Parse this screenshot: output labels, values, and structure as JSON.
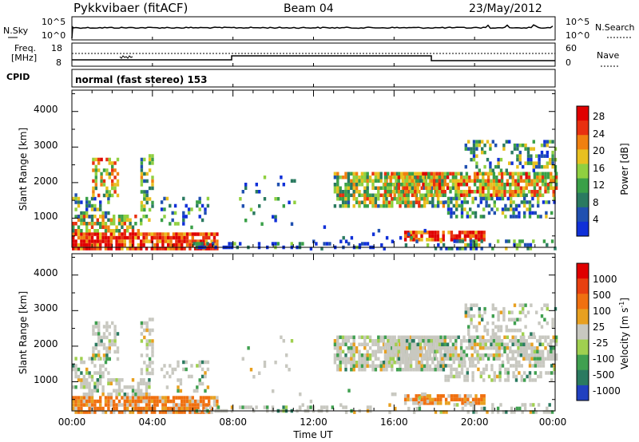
{
  "header": {
    "title": "Pykkvibaer (fitACF)",
    "beam": "Beam 04",
    "date": "23/May/2012"
  },
  "noise_panel": {
    "left_label": "N.Sky",
    "right_label": "N.Search",
    "left_ticks": [
      "10^5",
      "10^0"
    ],
    "right_ticks": [
      "10^5",
      "10^0"
    ]
  },
  "freq_panel": {
    "left_label_line1": "Freq.",
    "left_label_line2": "[MHz]",
    "right_label": "Nave",
    "left_ticks": [
      "18",
      "8"
    ],
    "right_ticks": [
      "60",
      "0"
    ]
  },
  "cpid": {
    "label": "CPID",
    "value": "normal (fast stereo) 153"
  },
  "x_axis": {
    "label": "Time UT",
    "ticks": [
      "00:00",
      "04:00",
      "08:00",
      "12:00",
      "16:00",
      "20:00",
      "00:00"
    ]
  },
  "colors": {
    "power_scale": [
      "#1030d8",
      "#2050b0",
      "#2a7a60",
      "#3aa048",
      "#90d040",
      "#e8c020",
      "#f08010",
      "#e83010",
      "#e00000"
    ],
    "velocity_scale": [
      "#2040c0",
      "#2a7a60",
      "#40a050",
      "#a0d050",
      "#c8c8c0",
      "#e8a020",
      "#f07010",
      "#e84010",
      "#e00000"
    ]
  },
  "chart_data": [
    {
      "type": "heatmap",
      "panel": "power",
      "ylabel": "Slant Range [km]",
      "xlabel": "",
      "y_ticks": [
        "1000",
        "2000",
        "3000",
        "4000"
      ],
      "x_range_hours": [
        0,
        24
      ],
      "y_range_km": [
        180,
        4600
      ],
      "colorbar": {
        "label": "Power [dB]",
        "ticks": [
          "4",
          "8",
          "12",
          "16",
          "20",
          "24",
          "28"
        ]
      }
    },
    {
      "type": "heatmap",
      "panel": "velocity",
      "ylabel": "Slant Range [km]",
      "xlabel": "Time UT",
      "y_ticks": [
        "1000",
        "2000",
        "3000",
        "4000"
      ],
      "x_range_hours": [
        0,
        24
      ],
      "y_range_km": [
        180,
        4600
      ],
      "colorbar": {
        "label": "Velocity [m s",
        "label_sup": "-1",
        "label_end": "]",
        "ticks": [
          "1000",
          "500",
          "100",
          "25",
          "-25",
          "-100",
          "-500",
          "-1000"
        ]
      }
    }
  ]
}
